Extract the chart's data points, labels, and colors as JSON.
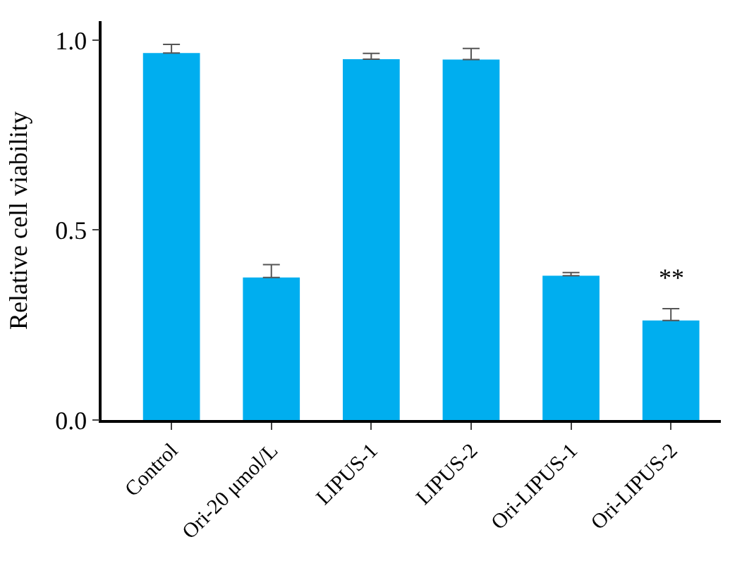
{
  "chart_data": {
    "type": "bar",
    "ylabel": "Relative cell viability",
    "categories": [
      "Control",
      "Ori-20 μmol/L",
      "LIPUS-1",
      "LIPUS-2",
      "Ori-LIPUS-1",
      "Ori-LIPUS-2"
    ],
    "values": [
      0.966,
      0.375,
      0.95,
      0.949,
      0.38,
      0.262
    ],
    "errors": [
      [
        0.966,
        0.989
      ],
      [
        0.375,
        0.409
      ],
      [
        0.95,
        0.965
      ],
      [
        0.949,
        0.978
      ],
      [
        0.38,
        0.388
      ],
      [
        0.262,
        0.293
      ]
    ],
    "color": "#00aeef",
    "ylim": [
      0,
      1.05
    ],
    "yticks": [
      {
        "value": 0,
        "label": "0.0"
      },
      {
        "value": 0.5,
        "label": "0.5"
      },
      {
        "value": 1,
        "label": "1.0"
      }
    ],
    "annotations": [
      "**"
    ]
  }
}
